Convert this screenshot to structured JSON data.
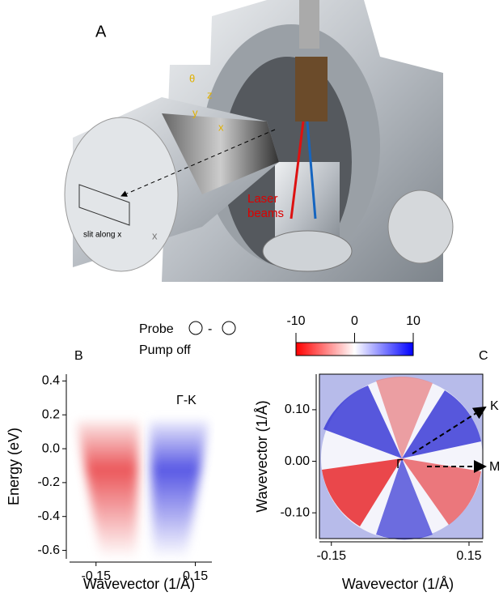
{
  "panel_a": {
    "label": "A",
    "laser": [
      "Laser",
      "beams"
    ],
    "slit": "slit along x",
    "slit_axis": "x",
    "theta": "θ",
    "z": "z",
    "y": "y",
    "x": "x"
  },
  "legend": {
    "probe": "Probe",
    "separator": "-",
    "pump": "Pump off"
  },
  "colorbar": {
    "ticks": [
      -10,
      0,
      10
    ],
    "lim": [
      -10,
      10
    ]
  },
  "panel_b": {
    "label": "B",
    "annotation": "Γ-K",
    "xlabel": "Wavevector (1/Å)",
    "ylabel": "Energy (eV)",
    "xlim": [
      -0.23,
      0.2
    ],
    "ylim": [
      -0.65,
      0.44
    ],
    "xticks": [
      {
        "value": -0.15,
        "label": "-0.15"
      },
      {
        "value": 0.15,
        "label": "0.15"
      }
    ],
    "yticks": [
      0.4,
      0.2,
      {
        "value": 0,
        "label": "0.0"
      },
      -0.2,
      -0.4,
      -0.6
    ]
  },
  "panel_c": {
    "label": "C",
    "center": "Γ",
    "k": "K",
    "m": "M",
    "xlabel": "Wavevector (1/Å)",
    "ylabel": "Wavevector (1/Å)",
    "xlim": [
      -0.176,
      0.18
    ],
    "ylim": [
      -0.15,
      0.169
    ],
    "xticks": [
      {
        "value": -0.15,
        "label": "-0.15"
      },
      {
        "value": 0.15,
        "label": "0.15"
      }
    ],
    "yticks": [
      {
        "value": 0.1,
        "label": "0.10"
      },
      {
        "value": 0,
        "label": "0.00"
      },
      {
        "value": -0.1,
        "label": "-0.10"
      }
    ]
  }
}
